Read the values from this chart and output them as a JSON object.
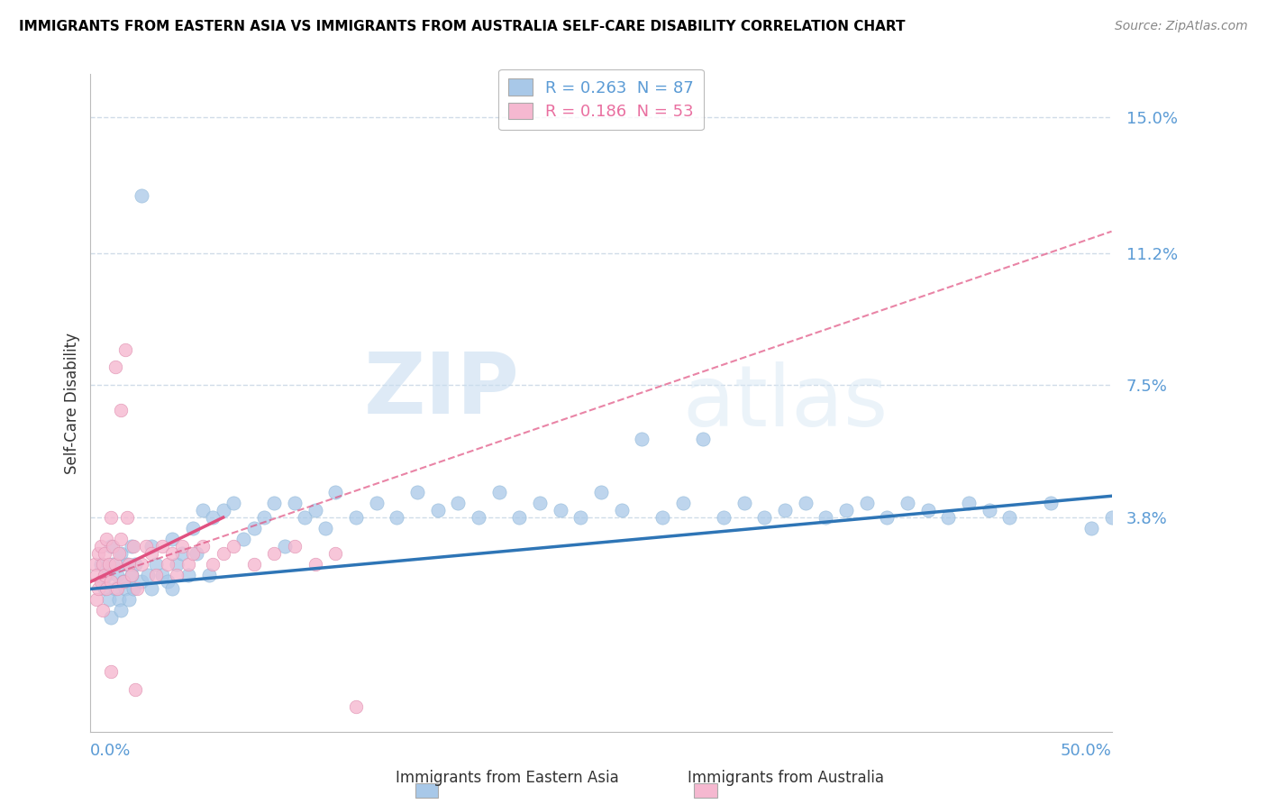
{
  "title": "IMMIGRANTS FROM EASTERN ASIA VS IMMIGRANTS FROM AUSTRALIA SELF-CARE DISABILITY CORRELATION CHART",
  "source": "Source: ZipAtlas.com",
  "ylabel": "Self-Care Disability",
  "yticks": [
    0.038,
    0.075,
    0.112,
    0.15
  ],
  "ytick_labels": [
    "3.8%",
    "7.5%",
    "11.2%",
    "15.0%"
  ],
  "xlim": [
    0.0,
    0.5
  ],
  "ylim": [
    -0.022,
    0.162
  ],
  "legend_entries": [
    {
      "label": "R = 0.263  N = 87",
      "color": "#5b9bd5"
    },
    {
      "label": "R = 0.186  N = 53",
      "color": "#e96fa0"
    }
  ],
  "scatter_blue": {
    "x": [
      0.005,
      0.006,
      0.007,
      0.008,
      0.009,
      0.01,
      0.01,
      0.011,
      0.012,
      0.013,
      0.014,
      0.015,
      0.015,
      0.016,
      0.017,
      0.018,
      0.019,
      0.02,
      0.02,
      0.021,
      0.022,
      0.025,
      0.025,
      0.028,
      0.03,
      0.03,
      0.032,
      0.035,
      0.038,
      0.04,
      0.04,
      0.042,
      0.045,
      0.048,
      0.05,
      0.052,
      0.055,
      0.058,
      0.06,
      0.065,
      0.07,
      0.075,
      0.08,
      0.085,
      0.09,
      0.095,
      0.1,
      0.105,
      0.11,
      0.115,
      0.12,
      0.13,
      0.14,
      0.15,
      0.16,
      0.17,
      0.18,
      0.19,
      0.2,
      0.21,
      0.22,
      0.23,
      0.24,
      0.25,
      0.26,
      0.27,
      0.28,
      0.29,
      0.3,
      0.31,
      0.32,
      0.33,
      0.34,
      0.35,
      0.36,
      0.37,
      0.38,
      0.39,
      0.4,
      0.41,
      0.42,
      0.43,
      0.44,
      0.45,
      0.47,
      0.49,
      0.5
    ],
    "y": [
      0.025,
      0.02,
      0.018,
      0.022,
      0.015,
      0.03,
      0.01,
      0.025,
      0.018,
      0.022,
      0.015,
      0.028,
      0.012,
      0.02,
      0.018,
      0.025,
      0.015,
      0.03,
      0.022,
      0.018,
      0.025,
      0.128,
      0.02,
      0.022,
      0.03,
      0.018,
      0.025,
      0.022,
      0.02,
      0.032,
      0.018,
      0.025,
      0.028,
      0.022,
      0.035,
      0.028,
      0.04,
      0.022,
      0.038,
      0.04,
      0.042,
      0.032,
      0.035,
      0.038,
      0.042,
      0.03,
      0.042,
      0.038,
      0.04,
      0.035,
      0.045,
      0.038,
      0.042,
      0.038,
      0.045,
      0.04,
      0.042,
      0.038,
      0.045,
      0.038,
      0.042,
      0.04,
      0.038,
      0.045,
      0.04,
      0.06,
      0.038,
      0.042,
      0.06,
      0.038,
      0.042,
      0.038,
      0.04,
      0.042,
      0.038,
      0.04,
      0.042,
      0.038,
      0.042,
      0.04,
      0.038,
      0.042,
      0.04,
      0.038,
      0.042,
      0.035,
      0.038
    ]
  },
  "scatter_pink": {
    "x": [
      0.002,
      0.003,
      0.003,
      0.004,
      0.004,
      0.005,
      0.005,
      0.006,
      0.006,
      0.007,
      0.007,
      0.008,
      0.008,
      0.009,
      0.01,
      0.01,
      0.01,
      0.011,
      0.012,
      0.012,
      0.013,
      0.014,
      0.015,
      0.015,
      0.016,
      0.017,
      0.018,
      0.019,
      0.02,
      0.021,
      0.022,
      0.023,
      0.025,
      0.027,
      0.03,
      0.032,
      0.035,
      0.038,
      0.04,
      0.042,
      0.045,
      0.048,
      0.05,
      0.055,
      0.06,
      0.065,
      0.07,
      0.08,
      0.09,
      0.1,
      0.11,
      0.12,
      0.13
    ],
    "y": [
      0.025,
      0.022,
      0.015,
      0.018,
      0.028,
      0.02,
      0.03,
      0.025,
      0.012,
      0.022,
      0.028,
      0.018,
      0.032,
      0.025,
      0.038,
      0.02,
      -0.005,
      0.03,
      0.025,
      0.08,
      0.018,
      0.028,
      0.068,
      0.032,
      0.02,
      0.085,
      0.038,
      0.025,
      0.022,
      0.03,
      -0.01,
      0.018,
      0.025,
      0.03,
      0.028,
      0.022,
      0.03,
      0.025,
      0.028,
      0.022,
      0.03,
      0.025,
      0.028,
      0.03,
      0.025,
      0.028,
      0.03,
      0.025,
      0.028,
      0.03,
      0.025,
      0.028,
      -0.015
    ]
  },
  "trend_blue": {
    "x_start": 0.0,
    "x_end": 0.5,
    "y_start": 0.018,
    "y_end": 0.044
  },
  "trend_pink_solid": {
    "x_start": 0.0,
    "x_end": 0.065,
    "y_start": 0.02,
    "y_end": 0.038
  },
  "trend_pink_dashed": {
    "x_start": 0.0,
    "x_end": 0.5,
    "y_start": 0.02,
    "y_end": 0.118
  },
  "watermark_zip": "ZIP",
  "watermark_atlas": "atlas",
  "blue_color": "#a8c8e8",
  "pink_color": "#f5b8d0",
  "trend_blue_color": "#2e75b6",
  "trend_pink_color": "#e05080",
  "grid_color": "#d0dce8",
  "ytick_color": "#5b9bd5",
  "xtick_color": "#5b9bd5"
}
